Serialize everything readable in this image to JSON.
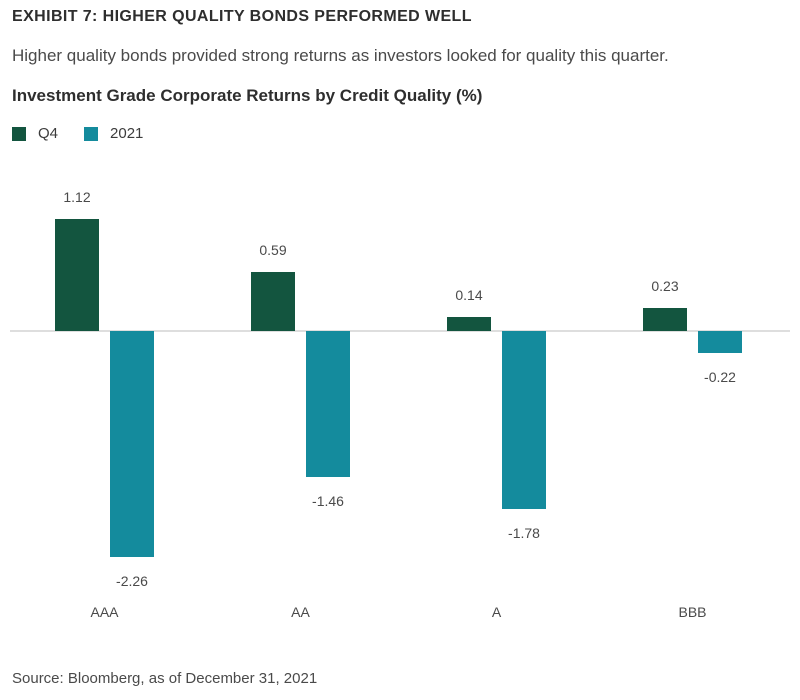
{
  "header": {
    "exhibit": "EXHIBIT 7: HIGHER QUALITY BONDS PERFORMED WELL",
    "subtitle": "Higher quality bonds provided strong returns as investors looked for quality this quarter.",
    "chart_title": "Investment Grade Corporate Returns by Credit Quality (%)"
  },
  "legend": [
    {
      "name": "Q4",
      "color": "#13553f"
    },
    {
      "name": "2021",
      "color": "#148b9d"
    }
  ],
  "source": "Source: Bloomberg, as of December 31, 2021",
  "chart_data": {
    "type": "bar",
    "title": "Investment Grade Corporate Returns by Credit Quality (%)",
    "categories": [
      "AAA",
      "AA",
      "A",
      "BBB"
    ],
    "series": [
      {
        "name": "Q4",
        "values": [
          1.12,
          0.59,
          0.14,
          0.23
        ],
        "color": "#13553f"
      },
      {
        "name": "2021",
        "values": [
          -2.26,
          -1.46,
          -1.78,
          -0.22
        ],
        "color": "#148b9d"
      }
    ],
    "ylim": [
      -2.26,
      1.12
    ],
    "grid": false,
    "legend_position": "top-left"
  }
}
